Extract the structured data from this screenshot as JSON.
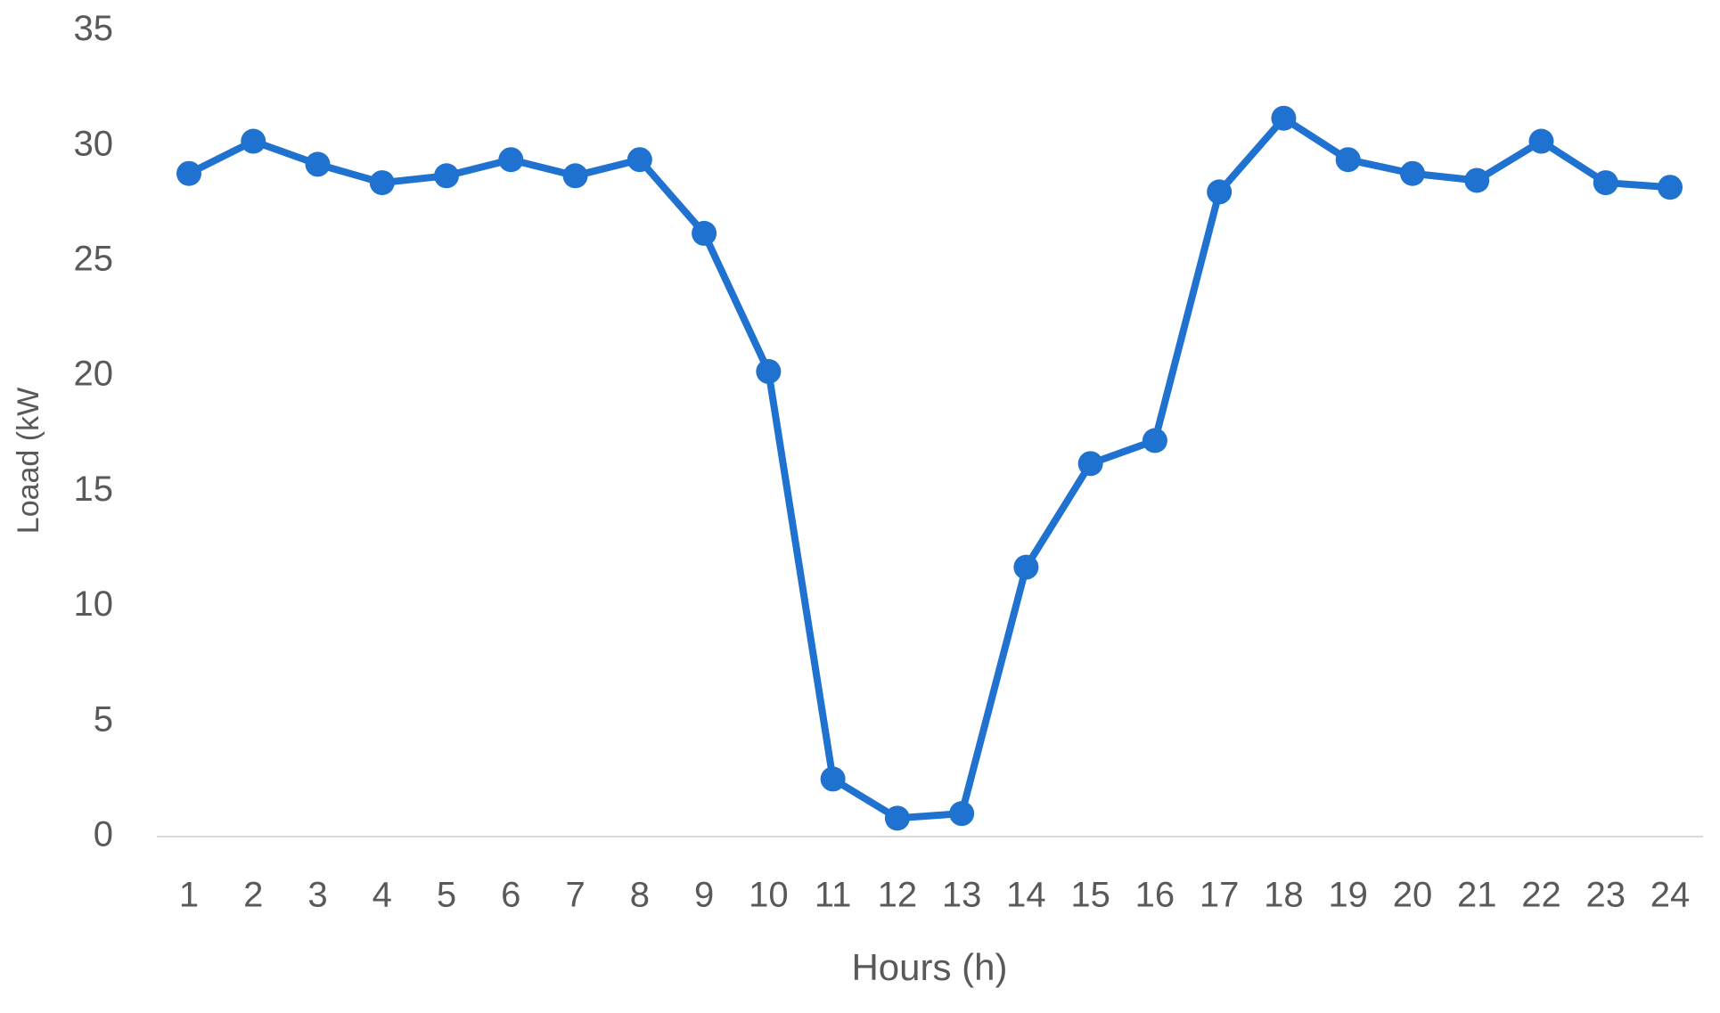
{
  "chart_data": {
    "type": "line",
    "x_label": "Hours (h)",
    "y_label": "Loaad (kW",
    "categories": [
      "1",
      "2",
      "3",
      "4",
      "5",
      "6",
      "7",
      "8",
      "9",
      "10",
      "11",
      "12",
      "13",
      "14",
      "15",
      "16",
      "17",
      "18",
      "19",
      "20",
      "21",
      "22",
      "23",
      "24"
    ],
    "series": [
      {
        "name": "Load",
        "color": "#1f72cf",
        "values": [
          28.8,
          30.2,
          29.2,
          28.4,
          28.7,
          29.4,
          28.7,
          29.4,
          26.2,
          20.2,
          2.5,
          0.8,
          1.0,
          11.7,
          16.2,
          17.2,
          28.0,
          31.2,
          29.4,
          28.8,
          28.5,
          30.2,
          28.4,
          28.2
        ]
      }
    ],
    "ylim": [
      0,
      35
    ],
    "yticks": [
      0,
      5,
      10,
      15,
      20,
      25,
      30,
      35
    ],
    "grid": false,
    "legend": false
  }
}
